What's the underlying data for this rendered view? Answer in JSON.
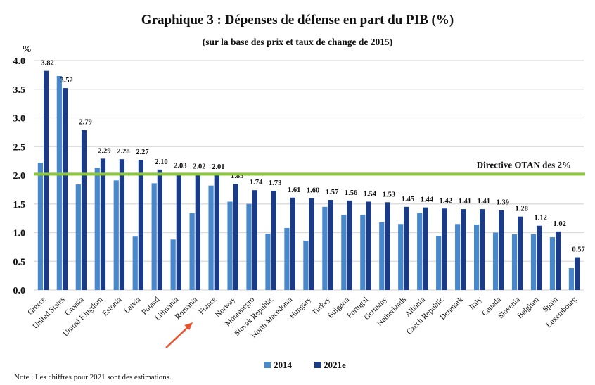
{
  "chart_data": {
    "type": "bar",
    "title": "Graphique 3 : Dépenses de défense en part du PIB (%)",
    "subtitle": "(sur la base des prix et taux de change de 2015)",
    "ylabel": "%",
    "ylim": [
      0,
      4.0
    ],
    "yticks": [
      "0.0",
      "0.5",
      "1.0",
      "1.5",
      "2.0",
      "2.5",
      "3.0",
      "3.5",
      "4.0"
    ],
    "grid": true,
    "legend_position": "bottom",
    "categories": [
      "Greece",
      "United States",
      "Croatia",
      "United Kingdom",
      "Estonia",
      "Latvia",
      "Poland",
      "Lithuania",
      "Romania",
      "France",
      "Norway",
      "Montenegro",
      "Slovak Republic",
      "North Macedonia",
      "Hungary",
      "Turkey",
      "Bulgaria",
      "Portugal",
      "Germany",
      "Netherlands",
      "Albania",
      "Czech Republic",
      "Denmark",
      "Italy",
      "Canada",
      "Slovenia",
      "Belgium",
      "Spain",
      "Luxembourg"
    ],
    "series": [
      {
        "name": "2014",
        "color": "#4a88cc",
        "values": [
          2.22,
          3.73,
          1.84,
          2.13,
          1.91,
          0.93,
          1.86,
          0.88,
          1.34,
          1.82,
          1.54,
          1.5,
          0.98,
          1.08,
          0.86,
          1.45,
          1.31,
          1.31,
          1.18,
          1.15,
          1.34,
          0.94,
          1.15,
          1.14,
          1.0,
          0.97,
          0.97,
          0.92,
          0.38
        ]
      },
      {
        "name": "2021e",
        "color": "#1a3b88",
        "values": [
          3.82,
          3.52,
          2.79,
          2.29,
          2.28,
          2.27,
          2.1,
          2.03,
          2.02,
          2.01,
          1.85,
          1.74,
          1.73,
          1.61,
          1.6,
          1.57,
          1.56,
          1.54,
          1.53,
          1.45,
          1.44,
          1.42,
          1.41,
          1.41,
          1.39,
          1.28,
          1.12,
          1.02,
          0.57
        ],
        "data_labels": [
          "3.82",
          "3.52",
          "2.79",
          "2.29",
          "2.28",
          "2.27",
          "2.10",
          "2.03",
          "2.02",
          "2.01",
          "1.85",
          "1.74",
          "1.73",
          "1.61",
          "1.60",
          "1.57",
          "1.56",
          "1.54",
          "1.53",
          "1.45",
          "1.44",
          "1.42",
          "1.41",
          "1.41",
          "1.39",
          "1.28",
          "1.12",
          "1.02",
          "0.57"
        ]
      }
    ],
    "reference_line": {
      "value": 2.02,
      "label": "Directive OTAN des 2%",
      "color": "#8cc63f"
    },
    "annotation": {
      "type": "arrow",
      "target": "Romania",
      "color": "#e8502a"
    }
  },
  "note": "Note : Les chiffres pour 2021 sont des estimations."
}
